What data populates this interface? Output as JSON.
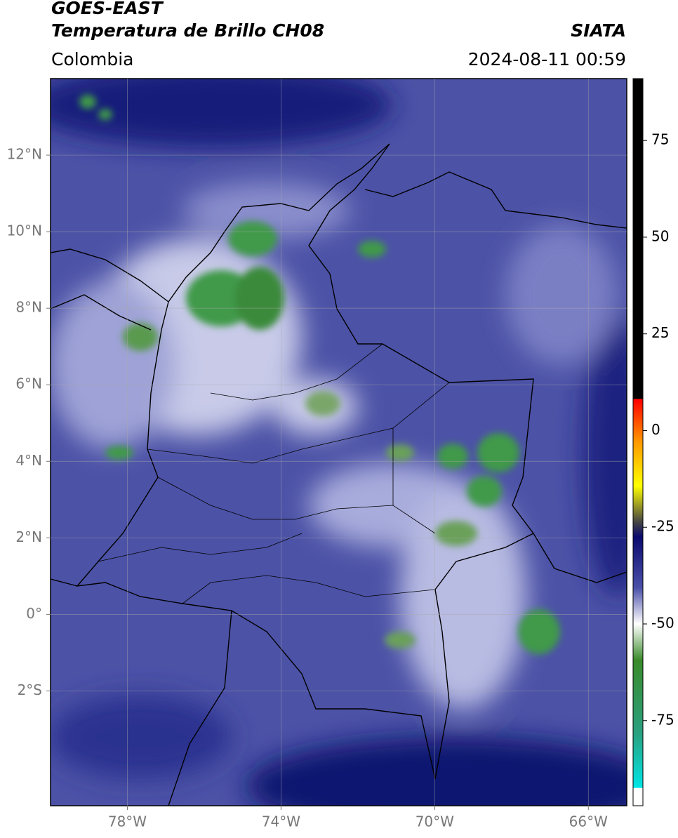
{
  "header": {
    "title": "GOES-EAST",
    "subtitle": "Temperatura de Brillo CH08",
    "source": "SIATA",
    "region": "Colombia",
    "datetime": "2024-08-11 00:59"
  },
  "map": {
    "xlim": [
      -80,
      -65
    ],
    "ylim": [
      -5,
      14
    ],
    "xticks": [
      {
        "value": -78,
        "label": "78°W"
      },
      {
        "value": -74,
        "label": "74°W"
      },
      {
        "value": -70,
        "label": "70°W"
      },
      {
        "value": -66,
        "label": "66°W"
      }
    ],
    "yticks": [
      {
        "value": 12,
        "label": "12°N"
      },
      {
        "value": 10,
        "label": "10°N"
      },
      {
        "value": 8,
        "label": "8°N"
      },
      {
        "value": 6,
        "label": "6°N"
      },
      {
        "value": 4,
        "label": "4°N"
      },
      {
        "value": 2,
        "label": "2°N"
      },
      {
        "value": 0,
        "label": "0°"
      },
      {
        "value": -2,
        "label": "2°S"
      }
    ],
    "grid": true
  },
  "colorbar": {
    "lim": [
      -97,
      91
    ],
    "ticks": [
      75,
      50,
      25,
      0,
      -25,
      -50,
      -75
    ]
  }
}
